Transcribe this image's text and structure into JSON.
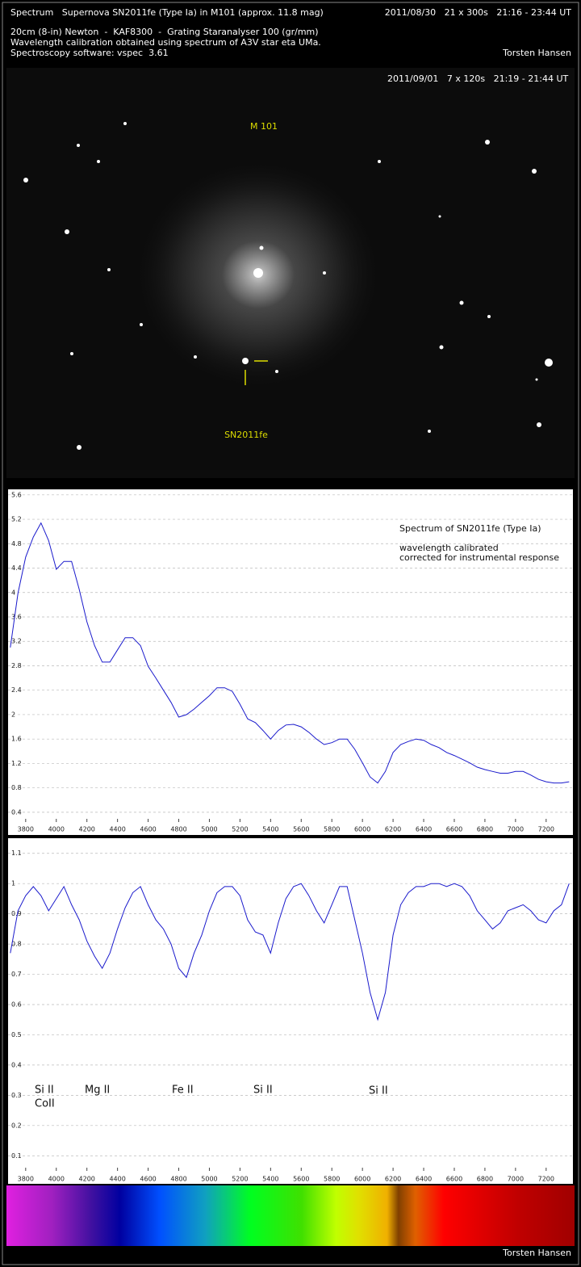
{
  "header": {
    "title": "Spectrum   Supernova SN2011fe (Type Ia) in M101 (approx. 11.8 mag)",
    "date": "2011/08/30   21 x 300s   21:16 - 23:44 UT",
    "setup": "20cm (8-in) Newton  -  KAF8300  -  Grating Staranalyser 100 (gr/mm)",
    "calibration": "Wavelength calibration obtained using spectrum of A3V star eta UMa.",
    "software": "Spectroscopy software: vspec  3.61",
    "author": "Torsten Hansen"
  },
  "image": {
    "caption": "2011/09/01   7 x 120s   21:19 - 21:44 UT",
    "galaxy": "M 101",
    "supernova": "SN2011fe"
  },
  "footer": "Torsten Hansen",
  "chart_data": [
    {
      "type": "line",
      "annotations": [
        "Spectrum of SN2011fe (Type Ia)",
        "wavelength calibrated",
        "corrected for instrumental response"
      ],
      "xlim": [
        3685,
        7375
      ],
      "xticks": [
        3800,
        4000,
        4200,
        4400,
        4600,
        4800,
        5000,
        5200,
        5400,
        5600,
        5800,
        6000,
        6200,
        6400,
        6600,
        6800,
        7000,
        7200
      ],
      "ylim": [
        0.24,
        5.69
      ],
      "yticks": [
        0.4,
        0.8,
        1.2,
        1.6,
        2,
        2.4,
        2.8,
        3.2,
        3.6,
        4,
        4.4,
        4.8,
        5.2,
        5.6
      ],
      "grid": true,
      "x": [
        3700,
        3750,
        3800,
        3850,
        3900,
        3950,
        4000,
        4050,
        4100,
        4150,
        4200,
        4250,
        4300,
        4350,
        4400,
        4450,
        4500,
        4550,
        4600,
        4650,
        4700,
        4750,
        4800,
        4850,
        4900,
        4950,
        5000,
        5050,
        5100,
        5150,
        5200,
        5250,
        5300,
        5350,
        5400,
        5450,
        5500,
        5550,
        5600,
        5650,
        5700,
        5750,
        5800,
        5850,
        5900,
        5950,
        6000,
        6050,
        6100,
        6150,
        6200,
        6250,
        6300,
        6350,
        6400,
        6450,
        6500,
        6550,
        6600,
        6650,
        6700,
        6750,
        6800,
        6850,
        6900,
        6950,
        7000,
        7050,
        7100,
        7150,
        7200,
        7250,
        7300,
        7350
      ],
      "series": [
        {
          "color": "#1a1acc",
          "values": [
            3.1,
            3.99,
            4.58,
            4.91,
            5.14,
            4.85,
            4.38,
            4.51,
            4.51,
            4.05,
            3.52,
            3.13,
            2.86,
            2.86,
            3.06,
            3.26,
            3.26,
            3.13,
            2.79,
            2.6,
            2.4,
            2.2,
            1.96,
            2.0,
            2.09,
            2.2,
            2.31,
            2.44,
            2.44,
            2.38,
            2.17,
            1.93,
            1.87,
            1.74,
            1.6,
            1.74,
            1.83,
            1.84,
            1.8,
            1.71,
            1.6,
            1.51,
            1.54,
            1.6,
            1.6,
            1.43,
            1.21,
            0.98,
            0.88,
            1.07,
            1.38,
            1.51,
            1.56,
            1.6,
            1.58,
            1.51,
            1.46,
            1.38,
            1.33,
            1.27,
            1.21,
            1.14,
            1.1,
            1.07,
            1.04,
            1.04,
            1.07,
            1.07,
            1.01,
            0.94,
            0.9,
            0.88,
            0.88,
            0.9
          ]
        }
      ]
    },
    {
      "type": "line",
      "annotations": [
        "Si II",
        "CoII",
        "Mg II",
        "Fe II",
        "Si II",
        "Si II"
      ],
      "xlim": [
        3685,
        7375
      ],
      "xticks": [
        3800,
        4000,
        4200,
        4400,
        4600,
        4800,
        5000,
        5200,
        5400,
        5600,
        5800,
        6000,
        6200,
        6400,
        6600,
        6800,
        7000,
        7200
      ],
      "ylim": [
        0.05,
        1.15
      ],
      "yticks": [
        0.1,
        0.2,
        0.3,
        0.4,
        0.5,
        0.6,
        0.7,
        0.8,
        0.9,
        1,
        1.1
      ],
      "grid": true,
      "x": [
        3700,
        3750,
        3800,
        3850,
        3900,
        3950,
        4000,
        4050,
        4100,
        4150,
        4200,
        4250,
        4300,
        4350,
        4400,
        4450,
        4500,
        4550,
        4600,
        4650,
        4700,
        4750,
        4800,
        4850,
        4900,
        4950,
        5000,
        5050,
        5100,
        5150,
        5200,
        5250,
        5300,
        5350,
        5400,
        5450,
        5500,
        5550,
        5600,
        5650,
        5700,
        5750,
        5800,
        5850,
        5900,
        5950,
        6000,
        6050,
        6100,
        6150,
        6200,
        6250,
        6300,
        6350,
        6400,
        6450,
        6500,
        6550,
        6600,
        6650,
        6700,
        6750,
        6800,
        6850,
        6900,
        6950,
        7000,
        7050,
        7100,
        7150,
        7200,
        7250,
        7300,
        7350
      ],
      "series": [
        {
          "color": "#1a1acc",
          "values": [
            0.77,
            0.91,
            0.96,
            0.99,
            0.96,
            0.91,
            0.95,
            0.99,
            0.93,
            0.88,
            0.81,
            0.76,
            0.72,
            0.77,
            0.85,
            0.92,
            0.97,
            0.99,
            0.93,
            0.88,
            0.85,
            0.8,
            0.72,
            0.69,
            0.77,
            0.83,
            0.91,
            0.97,
            0.99,
            0.99,
            0.96,
            0.88,
            0.84,
            0.83,
            0.77,
            0.87,
            0.95,
            0.99,
            1.0,
            0.96,
            0.91,
            0.87,
            0.93,
            0.99,
            0.99,
            0.88,
            0.77,
            0.64,
            0.55,
            0.64,
            0.83,
            0.93,
            0.97,
            0.99,
            0.99,
            1.0,
            1.0,
            0.99,
            1.0,
            0.99,
            0.96,
            0.91,
            0.88,
            0.85,
            0.87,
            0.91,
            0.92,
            0.93,
            0.91,
            0.88,
            0.87,
            0.91,
            0.93,
            1.0
          ]
        }
      ]
    }
  ]
}
